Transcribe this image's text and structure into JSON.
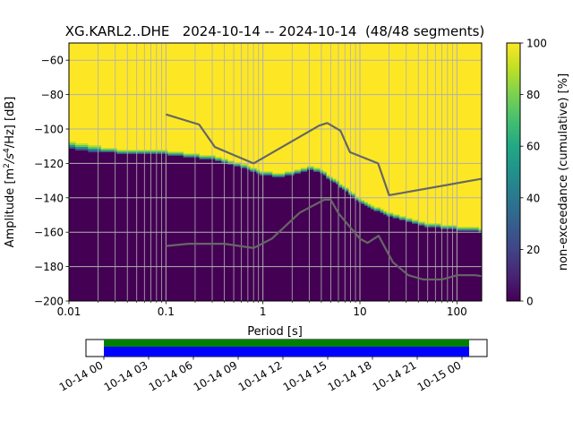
{
  "title": "XG.KARL2..DHE   2024-10-14 -- 2024-10-14  (48/48 segments)",
  "chart_data": {
    "type": "heatmap",
    "title": "XG.KARL2..DHE   2024-10-14 -- 2024-10-14  (48/48 segments)",
    "xlabel": "Period [s]",
    "ylabel_parts": {
      "main": "Amplitude [m",
      "sup1": "2",
      "mid1": "/s",
      "sup2": "4",
      "tail": "/Hz] [dB]"
    },
    "x_scale": "log",
    "xlim": [
      0.01,
      180
    ],
    "ylim": [
      -200,
      -50
    ],
    "x_ticks": [
      0.01,
      0.1,
      1,
      10,
      100
    ],
    "x_tick_labels": [
      "0.01",
      "0.1",
      "1",
      "10",
      "100"
    ],
    "y_ticks": [
      -200,
      -180,
      -160,
      -140,
      -120,
      -100,
      -80,
      -60
    ],
    "y_tick_labels": [
      "−200",
      "−180",
      "−160",
      "−140",
      "−120",
      "−100",
      "−80",
      "−60"
    ],
    "grid": true,
    "colormap": "viridis",
    "colorbar": {
      "label": "non-exceedance (cumulative) [%]",
      "range": [
        0,
        100
      ],
      "ticks": [
        0,
        20,
        40,
        60,
        80,
        100
      ],
      "tick_labels": [
        "0",
        "20",
        "40",
        "60",
        "80",
        "100"
      ]
    },
    "noise_boundary": {
      "period": [
        0.01,
        0.012,
        0.015,
        0.02,
        0.025,
        0.03,
        0.04,
        0.05,
        0.07,
        0.1,
        0.15,
        0.2,
        0.3,
        0.5,
        0.7,
        1,
        1.5,
        2,
        3,
        4,
        5,
        7,
        10,
        15,
        20,
        30,
        50,
        70,
        100,
        180
      ],
      "db": [
        -111,
        -112,
        -113,
        -113.5,
        -114,
        -114,
        -114.5,
        -115,
        -115,
        -115,
        -116,
        -117,
        -118,
        -121,
        -124,
        -127,
        -128,
        -127,
        -124,
        -126,
        -130,
        -136,
        -143,
        -148,
        -151,
        -154,
        -157,
        -158,
        -159,
        -160
      ]
    },
    "series": [
      {
        "role": "high-noise-model",
        "period": [
          0.1,
          0.22,
          0.32,
          0.8,
          3.8,
          4.6,
          6.3,
          7.9,
          15.4,
          20,
          354.8
        ],
        "db": [
          -91.5,
          -97.4,
          -110.5,
          -120,
          -98,
          -96.5,
          -101,
          -113.5,
          -120,
          -138.5,
          -126
        ]
      },
      {
        "role": "low-noise-model",
        "period": [
          0.1,
          0.17,
          0.4,
          0.8,
          1.24,
          2.4,
          4.3,
          5,
          6,
          10,
          12,
          15.6,
          21.9,
          31.6,
          45,
          70,
          101,
          154,
          180
        ],
        "db": [
          -168,
          -166.7,
          -166.7,
          -169.2,
          -163.7,
          -148.6,
          -141.1,
          -141.1,
          -149,
          -163.8,
          -166.2,
          -162.1,
          -177.5,
          -185,
          -187.5,
          -187.5,
          -185,
          -185,
          -185.5
        ]
      }
    ]
  },
  "timeline": {
    "segments_label": "48/48 segments",
    "tick_labels": [
      "10-14 00",
      "10-14 03",
      "10-14 06",
      "10-14 09",
      "10-14 12",
      "10-14 15",
      "10-14 18",
      "10-14 21",
      "10-15 00"
    ],
    "colors": {
      "data": "#0000ff",
      "coverage": "#008000"
    }
  }
}
